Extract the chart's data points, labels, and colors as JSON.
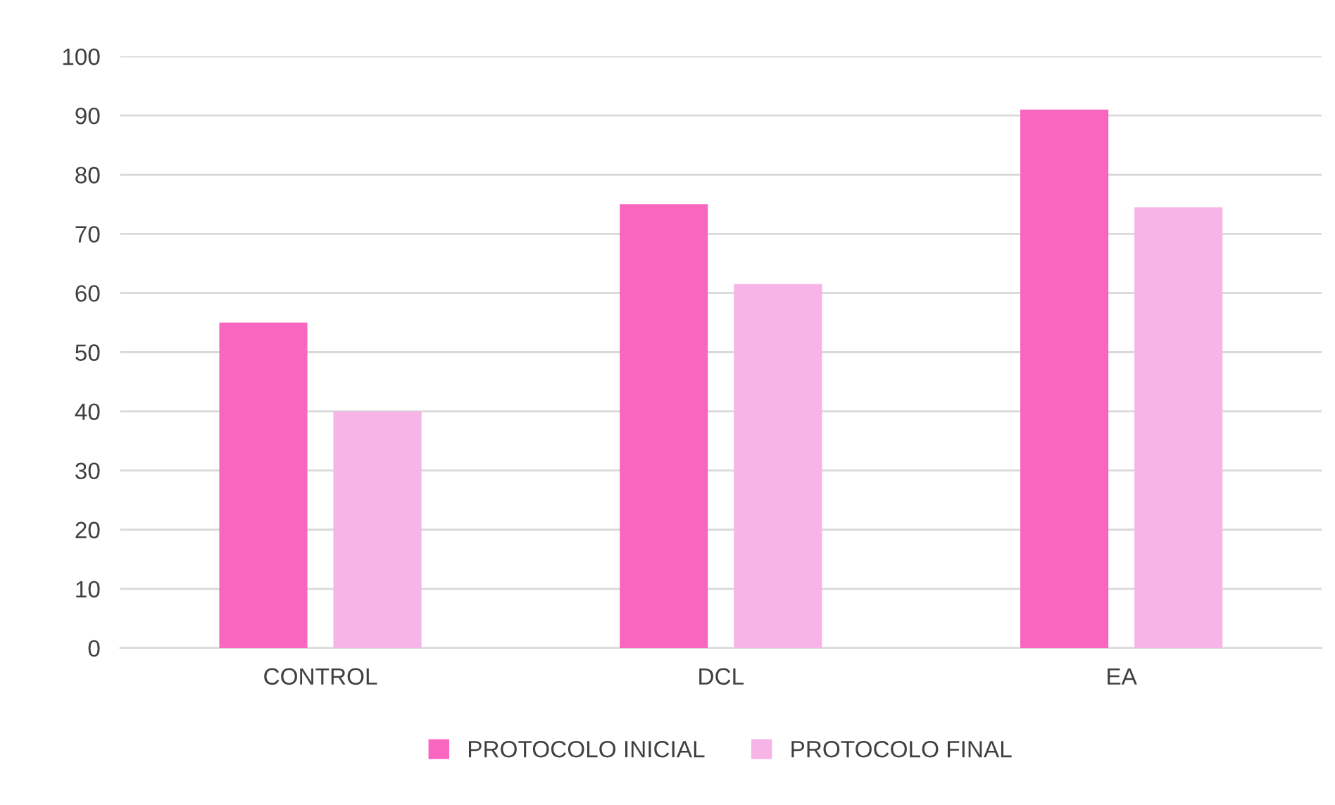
{
  "chart_data": {
    "type": "bar",
    "categories": [
      "CONTROL",
      "DCL",
      "EA"
    ],
    "series": [
      {
        "name": "PROTOCOLO INICIAL",
        "color": "#f966c0",
        "values": [
          55,
          75,
          91
        ]
      },
      {
        "name": "PROTOCOLO FINAL",
        "color": "#f7b4e7",
        "values": [
          40,
          61.5,
          74.5
        ]
      }
    ],
    "ylim": [
      0,
      100
    ],
    "yticks": [
      0,
      10,
      20,
      30,
      40,
      50,
      60,
      70,
      80,
      90,
      100
    ],
    "grid": "y",
    "legend": "bottom"
  }
}
